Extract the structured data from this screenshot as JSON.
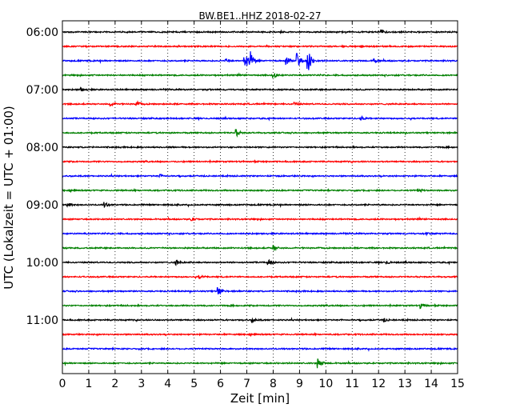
{
  "chart_data": {
    "type": "line",
    "title": "BW.BE1..HHZ 2018-02-27",
    "xlabel": "Zeit  [min]",
    "ylabel": "UTC (Lokalzeit = UTC + 01:00)",
    "xlim": [
      0,
      15
    ],
    "x_ticks": [
      "0",
      "1",
      "2",
      "3",
      "4",
      "5",
      "6",
      "7",
      "8",
      "9",
      "10",
      "11",
      "12",
      "13",
      "14",
      "15"
    ],
    "y_ticks": [
      {
        "label": "06:00",
        "row": 0
      },
      {
        "label": "07:00",
        "row": 4
      },
      {
        "label": "08:00",
        "row": 8
      },
      {
        "label": "09:00",
        "row": 12
      },
      {
        "label": "10:00",
        "row": 16
      },
      {
        "label": "11:00",
        "row": 20
      }
    ],
    "grid": "vertical dotted",
    "trace_colors": [
      "#000000",
      "#ff0000",
      "#0000ff",
      "#008000"
    ],
    "series": [
      {
        "start": "06:00",
        "events": [
          {
            "t": 12.1,
            "amp": 0.25
          }
        ]
      },
      {
        "start": "06:15",
        "events": []
      },
      {
        "start": "06:30",
        "events": [
          {
            "t": 6.2,
            "amp": 0.3
          },
          {
            "t": 6.9,
            "amp": 1.8
          },
          {
            "t": 7.1,
            "amp": 1.6
          },
          {
            "t": 8.5,
            "amp": 0.6
          },
          {
            "t": 8.9,
            "amp": 1.2
          },
          {
            "t": 9.3,
            "amp": 2.0
          },
          {
            "t": 11.8,
            "amp": 0.3
          }
        ]
      },
      {
        "start": "06:45",
        "events": [
          {
            "t": 8.0,
            "amp": 0.45
          }
        ]
      },
      {
        "start": "07:00",
        "events": [
          {
            "t": 0.7,
            "amp": 0.25
          }
        ]
      },
      {
        "start": "07:15",
        "events": [
          {
            "t": 1.8,
            "amp": 0.35
          },
          {
            "t": 2.8,
            "amp": 0.4
          },
          {
            "t": 8.8,
            "amp": 0.25
          }
        ]
      },
      {
        "start": "07:30",
        "events": [
          {
            "t": 11.3,
            "amp": 0.35
          }
        ]
      },
      {
        "start": "07:45",
        "events": [
          {
            "t": 6.6,
            "amp": 0.5
          }
        ]
      },
      {
        "start": "08:00",
        "events": []
      },
      {
        "start": "08:15",
        "events": []
      },
      {
        "start": "08:30",
        "events": [
          {
            "t": 3.7,
            "amp": 0.2
          }
        ]
      },
      {
        "start": "08:45",
        "events": [
          {
            "t": 13.5,
            "amp": 0.25
          }
        ]
      },
      {
        "start": "09:00",
        "events": [
          {
            "t": 0.2,
            "amp": 0.3
          },
          {
            "t": 1.6,
            "amp": 0.35
          }
        ]
      },
      {
        "start": "09:15",
        "events": [
          {
            "t": 4.9,
            "amp": 0.3
          }
        ]
      },
      {
        "start": "09:30",
        "events": [
          {
            "t": 13.8,
            "amp": 0.2
          }
        ]
      },
      {
        "start": "09:45",
        "events": [
          {
            "t": 8.0,
            "amp": 0.4
          }
        ]
      },
      {
        "start": "10:00",
        "events": [
          {
            "t": 4.3,
            "amp": 0.35
          },
          {
            "t": 7.8,
            "amp": 0.55
          },
          {
            "t": 12.3,
            "amp": 0.25
          }
        ]
      },
      {
        "start": "10:15",
        "events": [
          {
            "t": 5.2,
            "amp": 0.25
          }
        ]
      },
      {
        "start": "10:30",
        "events": [
          {
            "t": 5.9,
            "amp": 0.6
          }
        ]
      },
      {
        "start": "10:45",
        "events": [
          {
            "t": 13.6,
            "amp": 0.4
          }
        ]
      },
      {
        "start": "11:00",
        "events": [
          {
            "t": 7.2,
            "amp": 0.3
          },
          {
            "t": 12.2,
            "amp": 0.25
          }
        ]
      },
      {
        "start": "11:15",
        "events": []
      },
      {
        "start": "11:30",
        "events": []
      },
      {
        "start": "11:45",
        "events": [
          {
            "t": 9.7,
            "amp": 0.7
          }
        ]
      }
    ]
  }
}
